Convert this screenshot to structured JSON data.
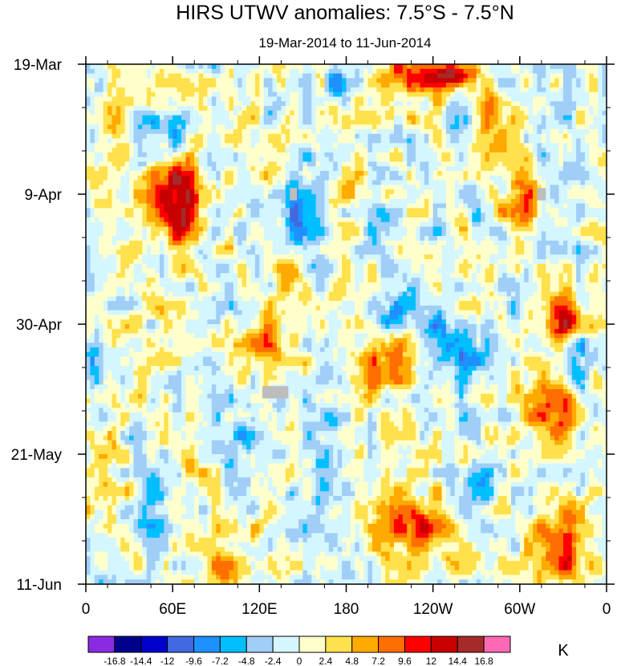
{
  "chart_data": {
    "type": "heatmap",
    "title": "HIRS UTWV anomalies: 7.5°S - 7.5°N",
    "subtitle": "19-Mar-2014 to 11-Jun-2014",
    "xlabel": "",
    "ylabel": "",
    "x_ticks": [
      "0",
      "60E",
      "120E",
      "180",
      "120W",
      "60W",
      "0"
    ],
    "x_range": [
      0,
      360
    ],
    "y_ticks": [
      "19-Mar",
      "9-Apr",
      "30-Apr",
      "21-May",
      "11-Jun"
    ],
    "y_range_days": [
      0,
      84
    ],
    "colorbar_levels": [
      "-16.8",
      "-14.4",
      "-12",
      "-9.6",
      "-7.2",
      "-4.8",
      "-2.4",
      "0",
      "2.4",
      "4.8",
      "7.2",
      "9.6",
      "12",
      "14.4",
      "16.8"
    ],
    "colorbar_colors": [
      "#8a2be2",
      "#00008b",
      "#0000cd",
      "#4169e1",
      "#1e90ff",
      "#00bfff",
      "#a0cef6",
      "#d4f6ff",
      "#ffffcc",
      "#ffe14d",
      "#ffaa00",
      "#ff6e00",
      "#ff0000",
      "#c80000",
      "#a52a2a",
      "#ff69b4"
    ],
    "colorbar_unit": "K",
    "anomaly_blobs": [
      {
        "lon": 65,
        "day": 24,
        "value": 15,
        "lon_spread": 14,
        "day_spread": 7
      },
      {
        "lon": 55,
        "day": 18,
        "value": 6,
        "lon_spread": 12,
        "day_spread": 5
      },
      {
        "lon": 20,
        "day": 12,
        "value": 5,
        "lon_spread": 10,
        "day_spread": 6
      },
      {
        "lon": 125,
        "day": 45,
        "value": 8,
        "lon_spread": 14,
        "day_spread": 5
      },
      {
        "lon": 140,
        "day": 34,
        "value": 5,
        "lon_spread": 10,
        "day_spread": 6
      },
      {
        "lon": 210,
        "day": 48,
        "value": 9,
        "lon_spread": 20,
        "day_spread": 5
      },
      {
        "lon": 230,
        "day": 2,
        "value": 11,
        "lon_spread": 28,
        "day_spread": 3
      },
      {
        "lon": 255,
        "day": 2,
        "value": 13,
        "lon_spread": 14,
        "day_spread": 2
      },
      {
        "lon": 300,
        "day": 23,
        "value": 10,
        "lon_spread": 14,
        "day_spread": 5
      },
      {
        "lon": 330,
        "day": 42,
        "value": 11,
        "lon_spread": 12,
        "day_spread": 4
      },
      {
        "lon": 325,
        "day": 56,
        "value": 9,
        "lon_spread": 16,
        "day_spread": 6
      },
      {
        "lon": 330,
        "day": 78,
        "value": 11,
        "lon_spread": 20,
        "day_spread": 6
      },
      {
        "lon": 230,
        "day": 75,
        "value": 10,
        "lon_spread": 22,
        "day_spread": 6
      },
      {
        "lon": 190,
        "day": 20,
        "value": 6,
        "lon_spread": 14,
        "day_spread": 6
      },
      {
        "lon": 95,
        "day": 80,
        "value": 6,
        "lon_spread": 14,
        "day_spread": 5
      },
      {
        "lon": 40,
        "day": 50,
        "value": 7,
        "lon_spread": 8,
        "day_spread": 4
      },
      {
        "lon": 10,
        "day": 68,
        "value": 6,
        "lon_spread": 10,
        "day_spread": 6
      },
      {
        "lon": 280,
        "day": 10,
        "value": 5,
        "lon_spread": 14,
        "day_spread": 6
      },
      {
        "lon": 150,
        "day": 25,
        "value": -9,
        "lon_spread": 14,
        "day_spread": 7
      },
      {
        "lon": 175,
        "day": 3,
        "value": -9,
        "lon_spread": 10,
        "day_spread": 3
      },
      {
        "lon": 55,
        "day": 11,
        "value": -6,
        "lon_spread": 16,
        "day_spread": 4
      },
      {
        "lon": 250,
        "day": 45,
        "value": -9,
        "lon_spread": 26,
        "day_spread": 5
      },
      {
        "lon": 210,
        "day": 40,
        "value": -6,
        "lon_spread": 16,
        "day_spread": 4
      },
      {
        "lon": 45,
        "day": 72,
        "value": -8,
        "lon_spread": 8,
        "day_spread": 7
      },
      {
        "lon": 200,
        "day": 23,
        "value": -6,
        "lon_spread": 10,
        "day_spread": 5
      },
      {
        "lon": 5,
        "day": 48,
        "value": -7,
        "lon_spread": 8,
        "day_spread": 4
      },
      {
        "lon": 270,
        "day": 70,
        "value": -7,
        "lon_spread": 10,
        "day_spread": 5
      },
      {
        "lon": 340,
        "day": 48,
        "value": -8,
        "lon_spread": 8,
        "day_spread": 4
      },
      {
        "lon": 110,
        "day": 60,
        "value": -6,
        "lon_spread": 14,
        "day_spread": 5
      },
      {
        "lon": 165,
        "day": 60,
        "value": -5,
        "lon_spread": 16,
        "day_spread": 6
      },
      {
        "lon": 290,
        "day": 30,
        "value": -4,
        "lon_spread": 18,
        "day_spread": 6
      },
      {
        "lon": 260,
        "day": 10,
        "value": -5,
        "lon_spread": 8,
        "day_spread": 5
      }
    ],
    "missing_data_regions": [
      {
        "lon": [
          141,
          146
        ],
        "day": [
          20,
          22
        ]
      },
      {
        "lon": [
          312,
          318
        ],
        "day": [
          20,
          22
        ]
      },
      {
        "lon": [
          122,
          140
        ],
        "day": [
          52,
          54
        ]
      }
    ]
  }
}
